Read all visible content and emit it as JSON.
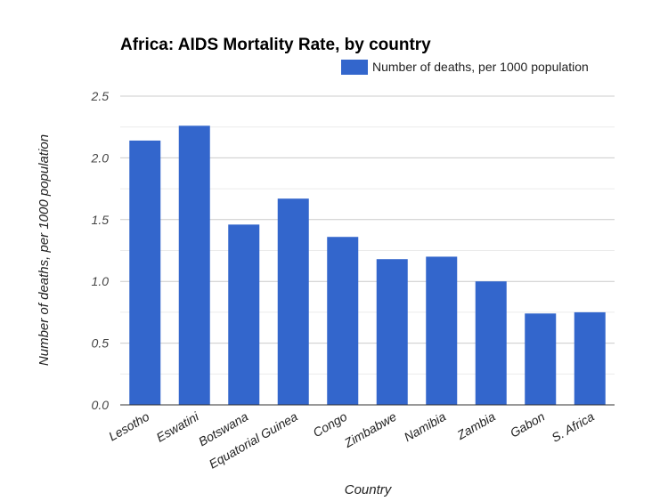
{
  "chart_data": {
    "type": "bar",
    "title": "Africa: AIDS Mortality Rate, by country",
    "xlabel": "Country",
    "ylabel": "Number of deaths, per 1000 population",
    "categories": [
      "Lesotho",
      "Eswatini",
      "Botswana",
      "Equatorial Guinea",
      "Congo",
      "Zimbabwe",
      "Namibia",
      "Zambia",
      "Gabon",
      "S. Africa"
    ],
    "series": [
      {
        "name": "Number of deaths, per 1000 population",
        "values": [
          2.14,
          2.26,
          1.46,
          1.67,
          1.36,
          1.18,
          1.2,
          1.0,
          0.74,
          0.75
        ],
        "color": "#3366cc"
      }
    ],
    "ylim": [
      0,
      2.5
    ],
    "yticks": [
      "0.0",
      "0.5",
      "1.0",
      "1.5",
      "2.0",
      "2.5"
    ],
    "grid": true,
    "legend": "top-right"
  }
}
